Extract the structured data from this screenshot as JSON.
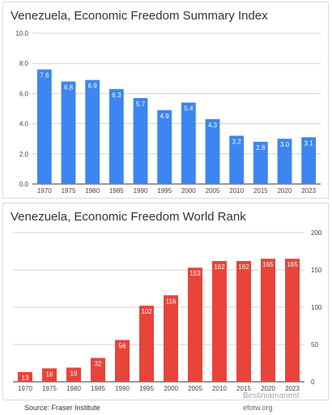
{
  "footer": {
    "source": "Source: Fraser Institute",
    "site": "efotw.org",
    "watermark": "Bestimamanent"
  },
  "chart_data": [
    {
      "type": "bar",
      "title": "Venezuela, Economic Freedom Summary Index",
      "categories": [
        "1970",
        "1975",
        "1980",
        "1985",
        "1990",
        "1995",
        "2000",
        "2005",
        "2010",
        "2015",
        "2020",
        "2023"
      ],
      "values": [
        7.6,
        6.8,
        6.9,
        6.3,
        5.7,
        4.9,
        5.4,
        4.3,
        3.2,
        2.8,
        3.0,
        3.1
      ],
      "value_labels": [
        "7.6",
        "6.8",
        "6.9",
        "6.3",
        "5.7",
        "4.9",
        "5.4",
        "4.3",
        "3.2",
        "2.8",
        "3.0",
        "3.1"
      ],
      "ylim": [
        0,
        10
      ],
      "yticks": [
        "0.0",
        "2.0",
        "4.0",
        "6.0",
        "8.0",
        "10.0"
      ],
      "ytick_values": [
        0,
        2,
        4,
        6,
        8,
        10
      ],
      "y_axis_side": "left",
      "grid": true,
      "color": "#3d85f0"
    },
    {
      "type": "bar",
      "title": "Venezuela, Economic Freedom World Rank",
      "categories": [
        "1970",
        "1975",
        "1980",
        "1985",
        "1990",
        "1995",
        "2000",
        "2005",
        "2010",
        "2015",
        "2020",
        "2023"
      ],
      "values": [
        13,
        18,
        19,
        32,
        56,
        102,
        116,
        153,
        162,
        162,
        165,
        165
      ],
      "value_labels": [
        "13",
        "18",
        "19",
        "32",
        "56",
        "102",
        "116",
        "153",
        "162",
        "162",
        "165",
        "165"
      ],
      "ylim": [
        0,
        200
      ],
      "yticks": [
        "0",
        "50",
        "100",
        "150",
        "200"
      ],
      "ytick_values": [
        0,
        50,
        100,
        150,
        200
      ],
      "y_axis_side": "right",
      "grid": true,
      "color": "#e8443a"
    }
  ]
}
